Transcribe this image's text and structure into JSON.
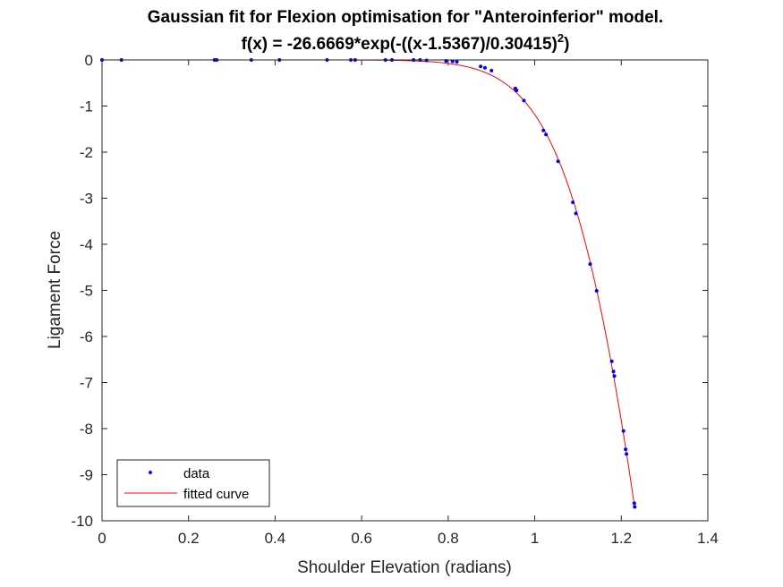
{
  "chart_data": {
    "type": "scatter",
    "title": "Gaussian fit for Flexion optimisation for \"Anteroinferior\" model.",
    "subtitle": {
      "prefix": "f(x) = -26.6669*exp(-((x-1.5367)/0.30415)",
      "superscript": "2",
      "suffix": ")"
    },
    "xlabel": "Shoulder Elevation (radians)",
    "ylabel": "Ligament Force",
    "xlim": [
      0,
      1.4
    ],
    "ylim": [
      -10,
      0
    ],
    "xticks": [
      0,
      0.2,
      0.4,
      0.6,
      0.8,
      1,
      1.2,
      1.4
    ],
    "xtick_labels": [
      "0",
      "0.2",
      "0.4",
      "0.6",
      "0.8",
      "1",
      "1.2",
      "1.4"
    ],
    "yticks": [
      0,
      -1,
      -2,
      -3,
      -4,
      -5,
      -6,
      -7,
      -8,
      -9,
      -10
    ],
    "ytick_labels": [
      "0",
      "-1",
      "-2",
      "-3",
      "-4",
      "-5",
      "-6",
      "-7",
      "-8",
      "-9",
      "-10"
    ],
    "grid": false,
    "legend_position": "bottom-left",
    "fit": {
      "a": -26.6669,
      "b": 1.5367,
      "c": 0.30415
    },
    "series": [
      {
        "name": "data",
        "color": "#0000ff",
        "marker": "dot",
        "points": [
          [
            0.0,
            0.0
          ],
          [
            0.045,
            0.0
          ],
          [
            0.26,
            0.0
          ],
          [
            0.265,
            0.0
          ],
          [
            0.345,
            0.0
          ],
          [
            0.41,
            0.0
          ],
          [
            0.52,
            0.0
          ],
          [
            0.575,
            0.0
          ],
          [
            0.585,
            0.0
          ],
          [
            0.655,
            0.0
          ],
          [
            0.67,
            0.0
          ],
          [
            0.72,
            0.0
          ],
          [
            0.735,
            0.0
          ],
          [
            0.75,
            -0.01
          ],
          [
            0.795,
            -0.02
          ],
          [
            0.81,
            -0.03
          ],
          [
            0.82,
            -0.04
          ],
          [
            0.875,
            -0.14
          ],
          [
            0.885,
            -0.17
          ],
          [
            0.9,
            -0.23
          ],
          [
            0.955,
            -0.62
          ],
          [
            0.958,
            -0.66
          ],
          [
            0.975,
            -0.88
          ],
          [
            1.02,
            -1.53
          ],
          [
            1.026,
            -1.62
          ],
          [
            1.054,
            -2.2
          ],
          [
            1.088,
            -3.09
          ],
          [
            1.095,
            -3.33
          ],
          [
            1.128,
            -4.43
          ],
          [
            1.143,
            -5.01
          ],
          [
            1.178,
            -6.54
          ],
          [
            1.182,
            -6.76
          ],
          [
            1.184,
            -6.86
          ],
          [
            1.205,
            -8.05
          ],
          [
            1.21,
            -8.45
          ],
          [
            1.212,
            -8.55
          ],
          [
            1.23,
            -9.62
          ],
          [
            1.231,
            -9.7
          ]
        ]
      },
      {
        "name": "fitted curve",
        "color": "#ff0000",
        "marker": "line",
        "x_range": [
          0,
          1.231
        ]
      }
    ]
  }
}
